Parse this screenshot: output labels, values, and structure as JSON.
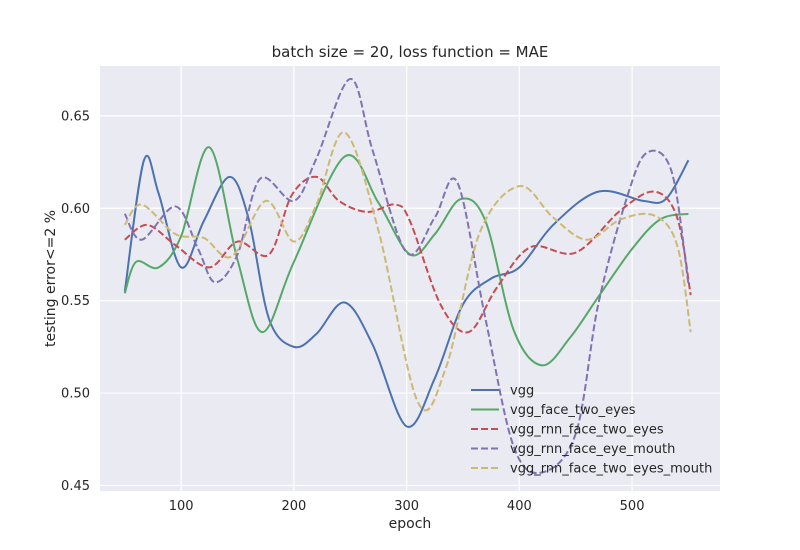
{
  "chart_data": {
    "type": "line",
    "title": "batch size = 20, loss function = MAE",
    "xlabel": "epoch",
    "ylabel": "testing error<=2 %",
    "xlim": [
      28,
      578
    ],
    "ylim": [
      0.447,
      0.677
    ],
    "xticks": [
      100,
      200,
      300,
      400,
      500
    ],
    "yticks": [
      0.45,
      0.5,
      0.55,
      0.6,
      0.65
    ],
    "ytick_labels": [
      "0.45",
      "0.50",
      "0.55",
      "0.60",
      "0.65"
    ],
    "grid": true,
    "background": "#eaeaf2",
    "legend_position": "lower-right",
    "series": [
      {
        "name": "vgg",
        "color": "#4c72b0",
        "dash": "solid",
        "x": [
          50,
          67,
          80,
          100,
          120,
          143,
          160,
          178,
          200,
          220,
          245,
          270,
          300,
          325,
          350,
          375,
          400,
          430,
          470,
          510,
          530,
          550
        ],
        "y": [
          0.555,
          0.626,
          0.608,
          0.568,
          0.593,
          0.617,
          0.594,
          0.54,
          0.525,
          0.532,
          0.549,
          0.526,
          0.482,
          0.508,
          0.548,
          0.562,
          0.568,
          0.591,
          0.609,
          0.604,
          0.605,
          0.626
        ]
      },
      {
        "name": "vgg_face_two_eyes",
        "color": "#55a868",
        "dash": "solid",
        "x": [
          50,
          60,
          80,
          100,
          125,
          150,
          172,
          200,
          245,
          275,
          303,
          325,
          348,
          370,
          395,
          420,
          445,
          470,
          500,
          525,
          550
        ],
        "y": [
          0.554,
          0.571,
          0.568,
          0.585,
          0.633,
          0.572,
          0.533,
          0.571,
          0.628,
          0.603,
          0.575,
          0.586,
          0.605,
          0.593,
          0.534,
          0.515,
          0.53,
          0.552,
          0.578,
          0.594,
          0.597
        ]
      },
      {
        "name": "vgg_rnn_face_two_eyes",
        "color": "#c44e52",
        "dash": "dashed",
        "x": [
          50,
          70,
          95,
          125,
          150,
          178,
          198,
          220,
          240,
          265,
          290,
          303,
          330,
          355,
          380,
          410,
          450,
          490,
          520,
          540,
          552
        ],
        "y": [
          0.583,
          0.591,
          0.58,
          0.568,
          0.582,
          0.575,
          0.607,
          0.617,
          0.604,
          0.598,
          0.602,
          0.593,
          0.548,
          0.533,
          0.557,
          0.579,
          0.576,
          0.599,
          0.609,
          0.595,
          0.553
        ]
      },
      {
        "name": "vgg_rnn_face_eye_mouth",
        "color": "#8172b2",
        "dash": "dashed",
        "x": [
          50,
          65,
          95,
          115,
          130,
          150,
          170,
          200,
          220,
          250,
          270,
          300,
          325,
          345,
          370,
          395,
          420,
          450,
          470,
          495,
          513,
          535,
          550
        ],
        "y": [
          0.597,
          0.583,
          0.601,
          0.578,
          0.56,
          0.575,
          0.616,
          0.604,
          0.627,
          0.67,
          0.631,
          0.576,
          0.595,
          0.614,
          0.54,
          0.471,
          0.457,
          0.478,
          0.548,
          0.605,
          0.63,
          0.62,
          0.559
        ]
      },
      {
        "name": "vgg_rnn_face_two_eyes_mouth",
        "color": "#ccb974",
        "dash": "dashed",
        "x": [
          50,
          65,
          95,
          120,
          145,
          175,
          200,
          220,
          245,
          275,
          310,
          335,
          365,
          400,
          430,
          460,
          490,
          520,
          540,
          552
        ],
        "y": [
          0.591,
          0.602,
          0.586,
          0.584,
          0.574,
          0.604,
          0.582,
          0.602,
          0.641,
          0.588,
          0.495,
          0.514,
          0.587,
          0.612,
          0.595,
          0.583,
          0.594,
          0.596,
          0.58,
          0.533
        ]
      }
    ]
  }
}
